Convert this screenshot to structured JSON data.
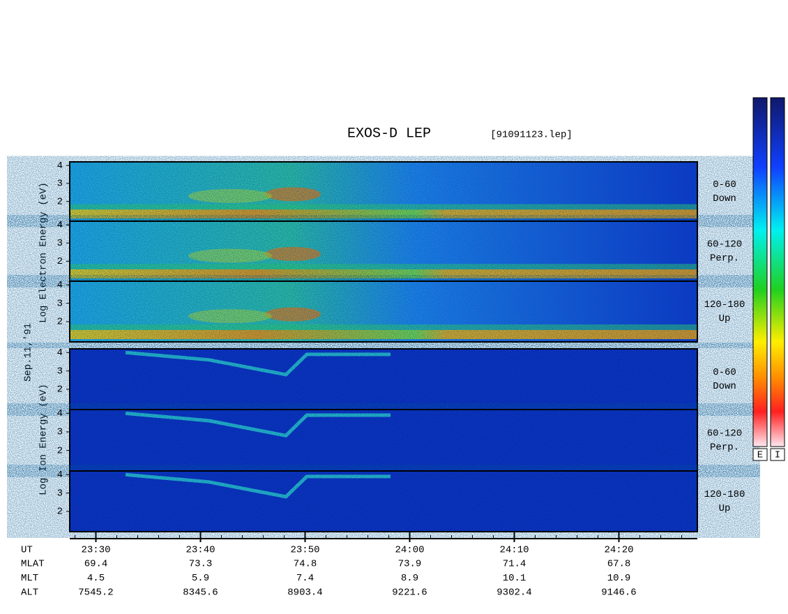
{
  "title": "EXOS-D LEP",
  "file": "[91091123.lep]",
  "date": "Sep.11,'91",
  "electron_axis_label": "Log Electron Energy (eV)",
  "ion_axis_label": "Log Ion Energy (eV)",
  "energy_axis": {
    "ylim": [
      0.9,
      4.2
    ],
    "yticks": [
      2,
      3,
      4
    ]
  },
  "panels": [
    {
      "species": "electron",
      "angle": "0-60",
      "direction": "Down"
    },
    {
      "species": "electron",
      "angle": "60-120",
      "direction": "Perp."
    },
    {
      "species": "electron",
      "angle": "120-180",
      "direction": "Up"
    },
    {
      "species": "ion",
      "angle": "0-60",
      "direction": "Down"
    },
    {
      "species": "ion",
      "angle": "60-120",
      "direction": "Perp."
    },
    {
      "species": "ion",
      "angle": "120-180",
      "direction": "Up"
    }
  ],
  "time_axis": {
    "name": "UT",
    "xlim": [
      1407.5,
      1467.5
    ],
    "ticks": [
      {
        "value": 1410,
        "label": "23:30"
      },
      {
        "value": 1420,
        "label": "23:40"
      },
      {
        "value": 1430,
        "label": "23:50"
      },
      {
        "value": 1440,
        "label": "24:00"
      },
      {
        "value": 1450,
        "label": "24:10"
      },
      {
        "value": 1460,
        "label": "24:20"
      }
    ]
  },
  "orbit_rows": [
    {
      "name": "MLAT",
      "values": [
        69.4,
        73.3,
        74.8,
        73.9,
        71.4,
        67.8
      ]
    },
    {
      "name": "MLT",
      "values": [
        4.5,
        5.9,
        7.4,
        8.9,
        10.1,
        10.9
      ]
    },
    {
      "name": "ALT",
      "values": [
        7545.2,
        8345.6,
        8903.4,
        9221.6,
        9302.4,
        9146.6
      ]
    }
  ],
  "colorbars": [
    "E",
    "I"
  ]
}
